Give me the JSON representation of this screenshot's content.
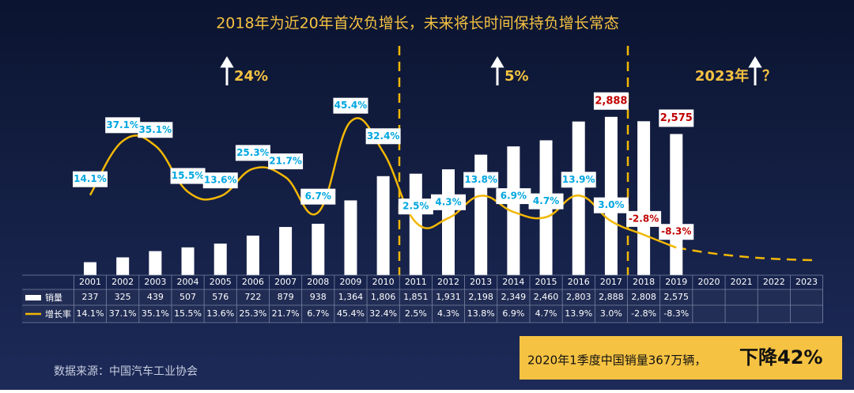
{
  "chart_data": {
    "type": "bar-line",
    "title": "2018年为近20年首次负增长，未来将长时间保持负增长常态",
    "annotations": [
      "24%",
      "5%",
      "2023年",
      "？"
    ],
    "categories": [
      "2001",
      "2002",
      "2003",
      "2004",
      "2005",
      "2006",
      "2007",
      "2008",
      "2009",
      "2010",
      "2011",
      "2012",
      "2013",
      "2014",
      "2015",
      "2016",
      "2017",
      "2018",
      "2019",
      "2020",
      "2021",
      "2022",
      "2023"
    ],
    "series": [
      {
        "name": "销量",
        "color": "#ffffff",
        "values": [
          237,
          325,
          439,
          507,
          576,
          722,
          879,
          938,
          1364,
          1806,
          1851,
          1931,
          2198,
          2349,
          2460,
          2803,
          2888,
          2808,
          2575,
          null,
          null,
          null,
          null
        ],
        "value_labels": [
          "237",
          "325",
          "439",
          "507",
          "576",
          "722",
          "879",
          "938",
          "1,364",
          "1,806",
          "1,851",
          "1,931",
          "2,198",
          "2,349",
          "2,460",
          "2,803",
          "2,888",
          "2,808",
          "2,575",
          null,
          null,
          null,
          null
        ]
      },
      {
        "name": "增长率",
        "color": "#f2b705",
        "axis": "y2",
        "values": [
          14.1,
          37.1,
          35.1,
          15.5,
          13.6,
          25.3,
          21.7,
          6.7,
          45.4,
          32.4,
          2.5,
          4.3,
          13.8,
          6.9,
          4.7,
          13.9,
          3.0,
          -2.8,
          -8.3,
          null,
          null,
          null,
          null
        ],
        "value_labels": [
          "14.1%",
          "37.1%",
          "35.1%",
          "15.5%",
          "13.6%",
          "25.3%",
          "21.7%",
          "6.7%",
          "45.4%",
          "32.4%",
          "2.5%",
          "4.3%",
          "13.8%",
          "6.9%",
          "4.7%",
          "13.9%",
          "3.0%",
          "-2.8%",
          "-8.3%",
          null,
          null,
          null,
          null
        ]
      }
    ],
    "ylim": [
      0,
      3000
    ],
    "y2lim": [
      -20,
      50
    ],
    "source": "数据来源：中国汽车工业协会",
    "callout": [
      "2020年1季度中国销量367万辆，",
      "下降42%"
    ]
  }
}
